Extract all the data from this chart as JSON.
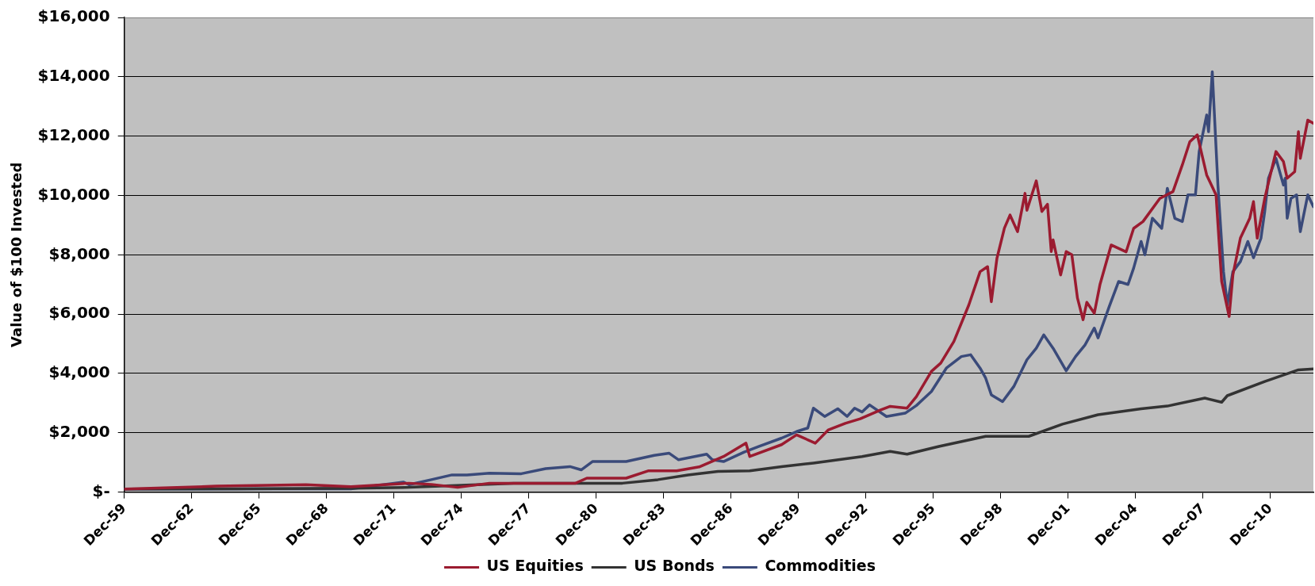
{
  "chart_data": {
    "type": "line",
    "ylabel": "Value of $100 Invested",
    "grid": "y",
    "legend": "bottom",
    "marker": "none",
    "line_style": "solid",
    "xlim": [
      "1959-12",
      "2012-11"
    ],
    "xticks": [
      {
        "value": "1959-12",
        "label": "Dec-59"
      },
      {
        "value": "1962-12",
        "label": "Dec-62"
      },
      {
        "value": "1965-12",
        "label": "Dec-65"
      },
      {
        "value": "1968-12",
        "label": "Dec-68"
      },
      {
        "value": "1971-12",
        "label": "Dec-71"
      },
      {
        "value": "1974-12",
        "label": "Dec-74"
      },
      {
        "value": "1977-12",
        "label": "Dec-77"
      },
      {
        "value": "1980-12",
        "label": "Dec-80"
      },
      {
        "value": "1983-12",
        "label": "Dec-83"
      },
      {
        "value": "1986-12",
        "label": "Dec-86"
      },
      {
        "value": "1989-12",
        "label": "Dec-89"
      },
      {
        "value": "1992-12",
        "label": "Dec-92"
      },
      {
        "value": "1995-12",
        "label": "Dec-95"
      },
      {
        "value": "1998-12",
        "label": "Dec-98"
      },
      {
        "value": "2001-12",
        "label": "Dec-01"
      },
      {
        "value": "2004-12",
        "label": "Dec-04"
      },
      {
        "value": "2007-12",
        "label": "Dec-07"
      },
      {
        "value": "2010-12",
        "label": "Dec-10"
      }
    ],
    "ylim": [
      0,
      16000
    ],
    "yticks": [
      {
        "value": 0,
        "label": "$-"
      },
      {
        "value": 2000,
        "label": "$2,000"
      },
      {
        "value": 4000,
        "label": "$4,000"
      },
      {
        "value": 6000,
        "label": "$6,000"
      },
      {
        "value": 8000,
        "label": "$8,000"
      },
      {
        "value": 10000,
        "label": "$10,000"
      },
      {
        "value": 12000,
        "label": "$12,000"
      },
      {
        "value": 14000,
        "label": "$14,000"
      },
      {
        "value": 16000,
        "label": "$16,000"
      }
    ],
    "series": [
      {
        "name": "US Equities",
        "color": "#9b1b30",
        "x": [
          "1959-12",
          "1964-01",
          "1968-01",
          "1970-01",
          "1972-08",
          "1973-08",
          "1974-10",
          "1976-03",
          "1980-01",
          "1980-07",
          "1982-04",
          "1983-04",
          "1984-07",
          "1985-07",
          "1986-08",
          "1987-08",
          "1987-10",
          "1989-03",
          "1989-11",
          "1990-09",
          "1991-04",
          "1992-01",
          "1992-09",
          "1993-08",
          "1994-01",
          "1994-10",
          "1995-03",
          "1995-11",
          "1996-04",
          "1996-11",
          "1997-07",
          "1998-01",
          "1998-05",
          "1998-07",
          "1998-10",
          "1999-02",
          "1999-05",
          "1999-09",
          "2000-01",
          "2000-02",
          "2000-07",
          "2000-10",
          "2001-01",
          "2001-03",
          "2001-04",
          "2001-08",
          "2001-11",
          "2002-02",
          "2002-05",
          "2002-08",
          "2002-10",
          "2003-02",
          "2003-05",
          "2003-11",
          "2004-07",
          "2004-11",
          "2005-04",
          "2006-01",
          "2006-08",
          "2007-01",
          "2007-05",
          "2007-09",
          "2008-02",
          "2008-07",
          "2008-10",
          "2009-02",
          "2009-04",
          "2009-08",
          "2010-01",
          "2010-03",
          "2010-05",
          "2010-09",
          "2011-03",
          "2011-07",
          "2011-09",
          "2012-01",
          "2012-03",
          "2012-04",
          "2012-08",
          "2012-11"
        ],
        "values": [
          100,
          200,
          250,
          180,
          300,
          260,
          160,
          300,
          300,
          470,
          470,
          720,
          720,
          850,
          1200,
          1650,
          1200,
          1600,
          1930,
          1650,
          2100,
          2320,
          2470,
          2770,
          2890,
          2830,
          3220,
          4070,
          4350,
          5080,
          6310,
          7430,
          7600,
          6420,
          7880,
          8900,
          9340,
          8780,
          10070,
          9500,
          10490,
          9460,
          9700,
          8110,
          8500,
          7320,
          8110,
          8000,
          6540,
          5810,
          6400,
          6030,
          6990,
          8330,
          8100,
          8890,
          9120,
          9900,
          10130,
          11030,
          11810,
          12040,
          10690,
          10020,
          7100,
          5920,
          7320,
          8560,
          9230,
          9790,
          8560,
          9900,
          11480,
          11140,
          10580,
          10800,
          12150,
          11250,
          12540,
          12430
        ]
      },
      {
        "name": "US Bonds",
        "color": "#333333",
        "x": [
          "1959-12",
          "1965-01",
          "1970-01",
          "1972-08",
          "1977-04",
          "1982-02",
          "1983-09",
          "1985-01",
          "1986-05",
          "1987-10",
          "1989-03",
          "1990-08",
          "1992-10",
          "1994-01",
          "1994-10",
          "1996-03",
          "1998-04",
          "2000-03",
          "2001-09",
          "2003-04",
          "2005-03",
          "2006-05",
          "2008-01",
          "2008-10",
          "2009-01",
          "2010-09",
          "2012-03",
          "2012-11"
        ],
        "values": [
          100,
          110,
          130,
          160,
          300,
          300,
          420,
          580,
          700,
          720,
          860,
          980,
          1200,
          1370,
          1280,
          1540,
          1880,
          1880,
          2290,
          2610,
          2810,
          2900,
          3170,
          3030,
          3250,
          3730,
          4120,
          4150
        ]
      },
      {
        "name": "Commodities",
        "color": "#3a4a7a",
        "x": [
          "1959-12",
          "1966-01",
          "1970-01",
          "1972-05",
          "1972-08",
          "1973-08",
          "1974-07",
          "1975-03",
          "1976-03",
          "1977-08",
          "1978-09",
          "1979-10",
          "1980-04",
          "1980-10",
          "1982-04",
          "1983-07",
          "1984-03",
          "1984-08",
          "1985-11",
          "1986-02",
          "1986-08",
          "1987-07",
          "1988-03",
          "1989-03",
          "1989-11",
          "1990-05",
          "1990-08",
          "1991-02",
          "1991-09",
          "1992-02",
          "1992-06",
          "1992-10",
          "1993-02",
          "1993-11",
          "1994-09",
          "1995-03",
          "1995-11",
          "1996-07",
          "1997-03",
          "1997-08",
          "1998-01",
          "1998-04",
          "1998-07",
          "1999-01",
          "1999-07",
          "2000-02",
          "2000-07",
          "2000-11",
          "2001-04",
          "2001-11",
          "2002-04",
          "2002-09",
          "2003-02",
          "2003-04",
          "2003-10",
          "2004-03",
          "2004-08",
          "2004-11",
          "2005-03",
          "2005-05",
          "2005-09",
          "2006-02",
          "2006-05",
          "2006-09",
          "2007-01",
          "2007-04",
          "2007-08",
          "2007-10",
          "2008-02",
          "2008-03",
          "2008-05",
          "2008-08",
          "2008-11",
          "2009-01",
          "2009-04",
          "2009-08",
          "2009-12",
          "2010-03",
          "2010-07",
          "2010-09",
          "2010-11",
          "2011-03",
          "2011-07",
          "2011-08",
          "2011-09",
          "2011-11",
          "2012-02",
          "2012-04",
          "2012-08",
          "2012-11"
        ],
        "values": [
          100,
          110,
          110,
          340,
          250,
          420,
          580,
          580,
          640,
          620,
          790,
          860,
          750,
          1030,
          1030,
          1240,
          1310,
          1090,
          1280,
          1090,
          1030,
          1350,
          1540,
          1820,
          2040,
          2160,
          2830,
          2550,
          2810,
          2550,
          2830,
          2700,
          2940,
          2550,
          2660,
          2920,
          3390,
          4180,
          4570,
          4630,
          4180,
          3840,
          3280,
          3050,
          3560,
          4460,
          4850,
          5300,
          4850,
          4090,
          4570,
          4960,
          5530,
          5200,
          6260,
          7100,
          7000,
          7550,
          8450,
          8000,
          9230,
          8890,
          10240,
          9230,
          9120,
          10020,
          10020,
          11480,
          12710,
          12150,
          14170,
          10350,
          7430,
          6310,
          7430,
          7770,
          8450,
          7900,
          8560,
          9460,
          10580,
          11250,
          10350,
          10580,
          9230,
          9900,
          10020,
          8780,
          10020,
          9620
        ]
      }
    ]
  }
}
